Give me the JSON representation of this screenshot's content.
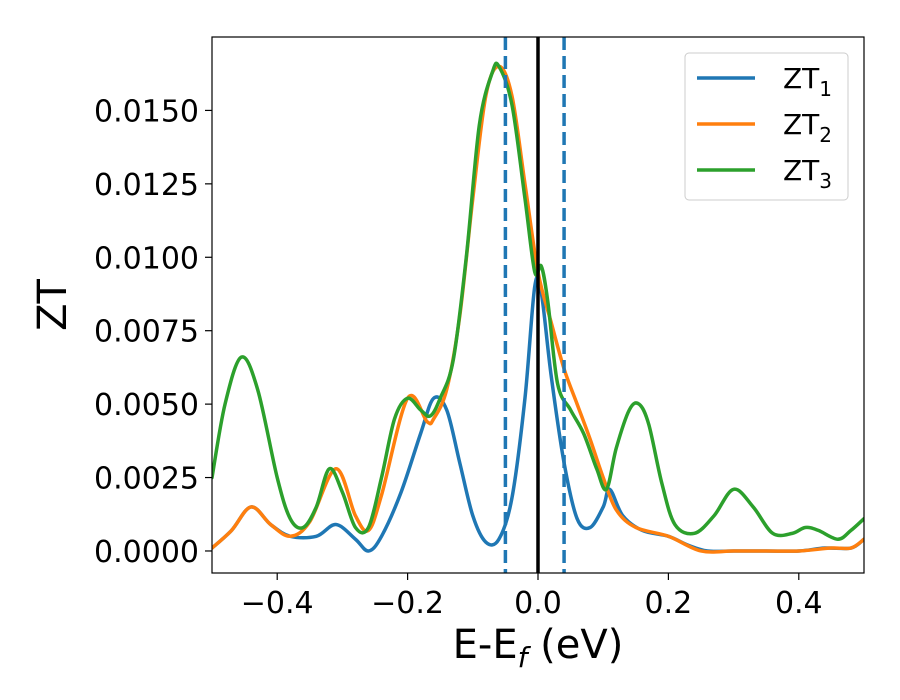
{
  "chart_data": {
    "type": "line",
    "xlabel_main": "E-E",
    "xlabel_sub": "f",
    "xlabel_unit": " (eV)",
    "ylabel": "ZT",
    "xlim": [
      -0.5,
      0.5
    ],
    "ylim": [
      -0.00075,
      0.0175
    ],
    "xticks": [
      -0.4,
      -0.2,
      0.0,
      0.2,
      0.4
    ],
    "xtick_labels": [
      "−0.4",
      "−0.2",
      "0.0",
      "0.2",
      "0.4"
    ],
    "yticks": [
      0.0,
      0.0025,
      0.005,
      0.0075,
      0.01,
      0.0125,
      0.015
    ],
    "ytick_labels": [
      "0.0000",
      "0.0025",
      "0.0050",
      "0.0075",
      "0.0100",
      "0.0125",
      "0.0150"
    ],
    "grid": false,
    "legend_position": "top-right",
    "colors": {
      "blue": "#1f77b4",
      "orange": "#ff7f0e",
      "green": "#2ca02c",
      "black": "#000000"
    },
    "series": [
      {
        "name": "ZT",
        "name_sub": "1",
        "color": "#1f77b4",
        "points": [
          [
            -0.5,
            0.0001
          ],
          [
            -0.47,
            0.0007
          ],
          [
            -0.44,
            0.0015
          ],
          [
            -0.41,
            0.0009
          ],
          [
            -0.38,
            0.0005
          ],
          [
            -0.34,
            0.0005
          ],
          [
            -0.31,
            0.0009
          ],
          [
            -0.28,
            0.0004
          ],
          [
            -0.26,
            0.0
          ],
          [
            -0.24,
            0.0005
          ],
          [
            -0.21,
            0.002
          ],
          [
            -0.18,
            0.004
          ],
          [
            -0.16,
            0.0052
          ],
          [
            -0.14,
            0.0048
          ],
          [
            -0.12,
            0.003
          ],
          [
            -0.1,
            0.0012
          ],
          [
            -0.08,
            0.0003
          ],
          [
            -0.06,
            0.0004
          ],
          [
            -0.04,
            0.0018
          ],
          [
            -0.02,
            0.0052
          ],
          [
            -0.005,
            0.009
          ],
          [
            0.005,
            0.0088
          ],
          [
            0.02,
            0.006
          ],
          [
            0.04,
            0.003
          ],
          [
            0.06,
            0.0011
          ],
          [
            0.08,
            0.0008
          ],
          [
            0.1,
            0.0015
          ],
          [
            0.11,
            0.0021
          ],
          [
            0.13,
            0.0012
          ],
          [
            0.16,
            0.0007
          ],
          [
            0.2,
            0.0005
          ],
          [
            0.23,
            0.0002
          ],
          [
            0.26,
            0.0
          ],
          [
            0.3,
            0.0
          ],
          [
            0.35,
            0.0
          ],
          [
            0.4,
            0.0
          ],
          [
            0.44,
            0.0001
          ],
          [
            0.48,
            0.0001
          ],
          [
            0.5,
            0.0004
          ]
        ]
      },
      {
        "name": "ZT",
        "name_sub": "2",
        "color": "#ff7f0e",
        "points": [
          [
            -0.5,
            0.0001
          ],
          [
            -0.47,
            0.0007
          ],
          [
            -0.44,
            0.0015
          ],
          [
            -0.41,
            0.0009
          ],
          [
            -0.38,
            0.0005
          ],
          [
            -0.35,
            0.001
          ],
          [
            -0.31,
            0.0028
          ],
          [
            -0.28,
            0.0012
          ],
          [
            -0.26,
            0.0007
          ],
          [
            -0.24,
            0.0019
          ],
          [
            -0.2,
            0.0052
          ],
          [
            -0.17,
            0.0044
          ],
          [
            -0.16,
            0.0045
          ],
          [
            -0.14,
            0.0055
          ],
          [
            -0.12,
            0.008
          ],
          [
            -0.1,
            0.012
          ],
          [
            -0.08,
            0.0155
          ],
          [
            -0.06,
            0.0165
          ],
          [
            -0.04,
            0.0155
          ],
          [
            -0.02,
            0.0125
          ],
          [
            0.0,
            0.0095
          ],
          [
            0.02,
            0.0078
          ],
          [
            0.04,
            0.0062
          ],
          [
            0.06,
            0.005
          ],
          [
            0.08,
            0.0038
          ],
          [
            0.1,
            0.0025
          ],
          [
            0.12,
            0.0014
          ],
          [
            0.15,
            0.0008
          ],
          [
            0.2,
            0.0005
          ],
          [
            0.25,
            0.0
          ],
          [
            0.3,
            0.0
          ],
          [
            0.35,
            0.0
          ],
          [
            0.4,
            0.0
          ],
          [
            0.45,
            0.0001
          ],
          [
            0.48,
            0.0001
          ],
          [
            0.5,
            0.0004
          ]
        ]
      },
      {
        "name": "ZT",
        "name_sub": "3",
        "color": "#2ca02c",
        "points": [
          [
            -0.5,
            0.0025
          ],
          [
            -0.48,
            0.005
          ],
          [
            -0.455,
            0.0066
          ],
          [
            -0.43,
            0.0055
          ],
          [
            -0.4,
            0.0025
          ],
          [
            -0.38,
            0.0011
          ],
          [
            -0.36,
            0.0008
          ],
          [
            -0.34,
            0.0015
          ],
          [
            -0.32,
            0.0028
          ],
          [
            -0.3,
            0.002
          ],
          [
            -0.28,
            0.0008
          ],
          [
            -0.26,
            0.0008
          ],
          [
            -0.24,
            0.0025
          ],
          [
            -0.22,
            0.0045
          ],
          [
            -0.2,
            0.0052
          ],
          [
            -0.18,
            0.0048
          ],
          [
            -0.165,
            0.0046
          ],
          [
            -0.15,
            0.0052
          ],
          [
            -0.13,
            0.0065
          ],
          [
            -0.11,
            0.01
          ],
          [
            -0.09,
            0.0145
          ],
          [
            -0.07,
            0.0163
          ],
          [
            -0.06,
            0.0165
          ],
          [
            -0.04,
            0.0152
          ],
          [
            -0.02,
            0.012
          ],
          [
            -0.005,
            0.0095
          ],
          [
            0.005,
            0.0097
          ],
          [
            0.015,
            0.0085
          ],
          [
            0.03,
            0.0057
          ],
          [
            0.05,
            0.0048
          ],
          [
            0.07,
            0.004
          ],
          [
            0.09,
            0.0028
          ],
          [
            0.105,
            0.0021
          ],
          [
            0.12,
            0.0035
          ],
          [
            0.14,
            0.0048
          ],
          [
            0.155,
            0.005
          ],
          [
            0.17,
            0.0043
          ],
          [
            0.19,
            0.0023
          ],
          [
            0.21,
            0.0009
          ],
          [
            0.24,
            0.0006
          ],
          [
            0.27,
            0.0012
          ],
          [
            0.3,
            0.0021
          ],
          [
            0.33,
            0.0015
          ],
          [
            0.36,
            0.0006
          ],
          [
            0.39,
            0.0006
          ],
          [
            0.41,
            0.0008
          ],
          [
            0.43,
            0.0007
          ],
          [
            0.46,
            0.0004
          ],
          [
            0.48,
            0.0007
          ],
          [
            0.5,
            0.0011
          ]
        ]
      }
    ],
    "vlines": [
      {
        "x": -0.05,
        "color": "#1f77b4",
        "dashed": true
      },
      {
        "x": 0.0,
        "color": "#000000",
        "dashed": false
      },
      {
        "x": 0.04,
        "color": "#1f77b4",
        "dashed": true
      }
    ]
  }
}
